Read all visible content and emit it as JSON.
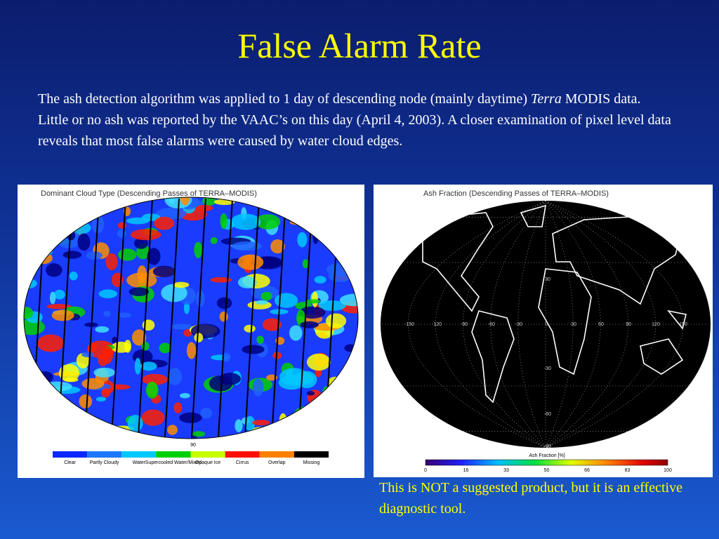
{
  "slide": {
    "title": "False Alarm Rate",
    "body": [
      "The ash detection algorithm was applied to 1 day of descending node (mainly daytime) ",
      "Terra",
      " MODIS data.  Little or no ash was reported by the VAAC’s on this day (April 4, 2003).  A closer examination of pixel level data reveals that most false alarms were caused by water cloud edges."
    ],
    "caption": "This is NOT a suggested product, but it is an effective diagnostic tool.",
    "left_map": {
      "title": "Dominant Cloud Type (Descending Passes of TERRA–MODIS)",
      "marker": "90",
      "legend": [
        "Clear",
        "Partly Cloudy",
        "Water",
        "Supercooled Water/Mixed",
        "Opaque Ice",
        "Cirrus",
        "Overlap",
        "Missing"
      ]
    },
    "right_map": {
      "title": "Ash Fraction (Descending Passes of TERRA–MODIS)",
      "lon_labels": [
        "-150",
        "-120",
        "-90",
        "-60",
        "-30",
        "0",
        "30",
        "60",
        "90",
        "120",
        "150"
      ],
      "lat_labels": [
        "30",
        "-30",
        "-60",
        "-90"
      ],
      "colorbar_title": "Ash Fraction [%]",
      "colorbar_ticks": [
        0,
        16,
        33,
        50,
        66,
        83,
        100
      ]
    }
  }
}
